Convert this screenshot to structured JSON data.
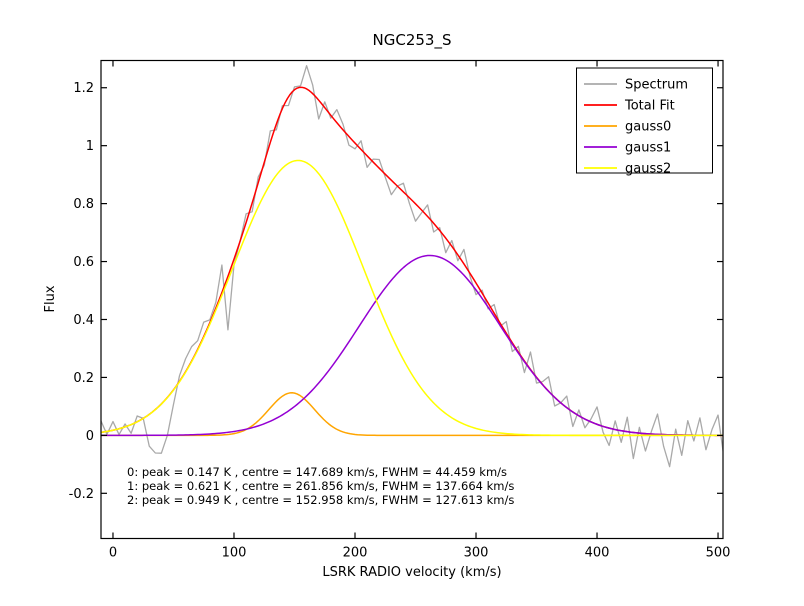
{
  "chart_data": {
    "type": "line",
    "title": "NGC253_S",
    "xlabel": "LSRK RADIO velocity (km/s)",
    "ylabel": "Flux",
    "xlim": [
      -9.9,
      504.1
    ],
    "ylim": [
      -0.356,
      1.294
    ],
    "x_ticks": [
      0,
      100,
      200,
      300,
      400,
      500
    ],
    "y_ticks": [
      -0.2,
      0,
      0.2,
      0.4,
      0.6,
      0.8,
      1,
      1.2
    ],
    "y_tick_labels": [
      "-0.2",
      "0",
      "0.2",
      "0.4",
      "0.6",
      "0.8",
      "1",
      "1.2"
    ],
    "grid": false,
    "background": "#ffffff",
    "legend_position": "upper right",
    "series": [
      {
        "name": "Spectrum",
        "type": "noisy-spectrum",
        "color": "#a9a9a9"
      },
      {
        "name": "Total Fit",
        "type": "gaussian-sum",
        "color": "#ff0000"
      },
      {
        "name": "gauss0",
        "type": "gaussian",
        "color": "#ffa500",
        "peak": 0.147,
        "centre": 147.689,
        "fwhm": 44.459
      },
      {
        "name": "gauss1",
        "type": "gaussian",
        "color": "#9400d3",
        "peak": 0.621,
        "centre": 261.856,
        "fwhm": 137.664
      },
      {
        "name": "gauss2",
        "type": "gaussian",
        "color": "#ffff00",
        "peak": 0.949,
        "centre": 152.958,
        "fwhm": 127.613
      }
    ],
    "spectrum": {
      "x_start": -10,
      "x_step": 5,
      "note": "spectrum flux = sum of gaussians + noise_offset at each channel",
      "noise_offsets": [
        0.04,
        -0.01,
        0.03,
        -0.02,
        0.01,
        -0.03,
        0.02,
        0,
        -0.11,
        -0.15,
        -0.17,
        -0.13,
        -0.05,
        0.02,
        0.045,
        0.05,
        0.03,
        0.05,
        0.01,
        0.02,
        0.095,
        -0.185,
        -0.02,
        0,
        0.03,
        -0.03,
        0.02,
        -0.01,
        0.04,
        -0.02,
        0.01,
        -0.03,
        0.01,
        0.005,
        0.08,
        0.03,
        -0.065,
        0.02,
        -0.01,
        0.045,
        0.02,
        -0.03,
        -0.02,
        0.03,
        -0.04,
        0.01,
        0.03,
        -0.01,
        -0.05,
        0,
        0.03,
        -0.02,
        -0.06,
        -0.01,
        0.04,
        -0.03,
        0.01,
        -0.05,
        0.02,
        -0.02,
        0.05,
        -0.01,
        -0.04,
        0.01,
        -0.02,
        0.03,
        -0.01,
        0.04,
        -0.03,
        0.02,
        -0.04,
        0.06,
        -0.02,
        0.01,
        0.05,
        -0.03,
        0,
        0.04,
        -0.05,
        0.02,
        -0.03,
        0.01,
        0.06,
        -0.02,
        -0.06,
        0.03,
        -0.04,
        0.05,
        -0.09,
        0.02,
        -0.06,
        0.01,
        0.07,
        -0.04,
        -0.11,
        0.02,
        -0.07,
        0.05,
        -0.02,
        0.06,
        -0.05,
        0.02,
        0.07,
        -0.08
      ]
    },
    "annotation": {
      "lines": [
        "0: peak = 0.147 K , centre = 147.689 km/s, FWHM = 44.459 km/s",
        "1: peak = 0.621 K , centre = 261.856 km/s, FWHM = 137.664 km/s",
        "2: peak = 0.949 K , centre = 152.958 km/s, FWHM = 127.613 km/s"
      ]
    }
  }
}
